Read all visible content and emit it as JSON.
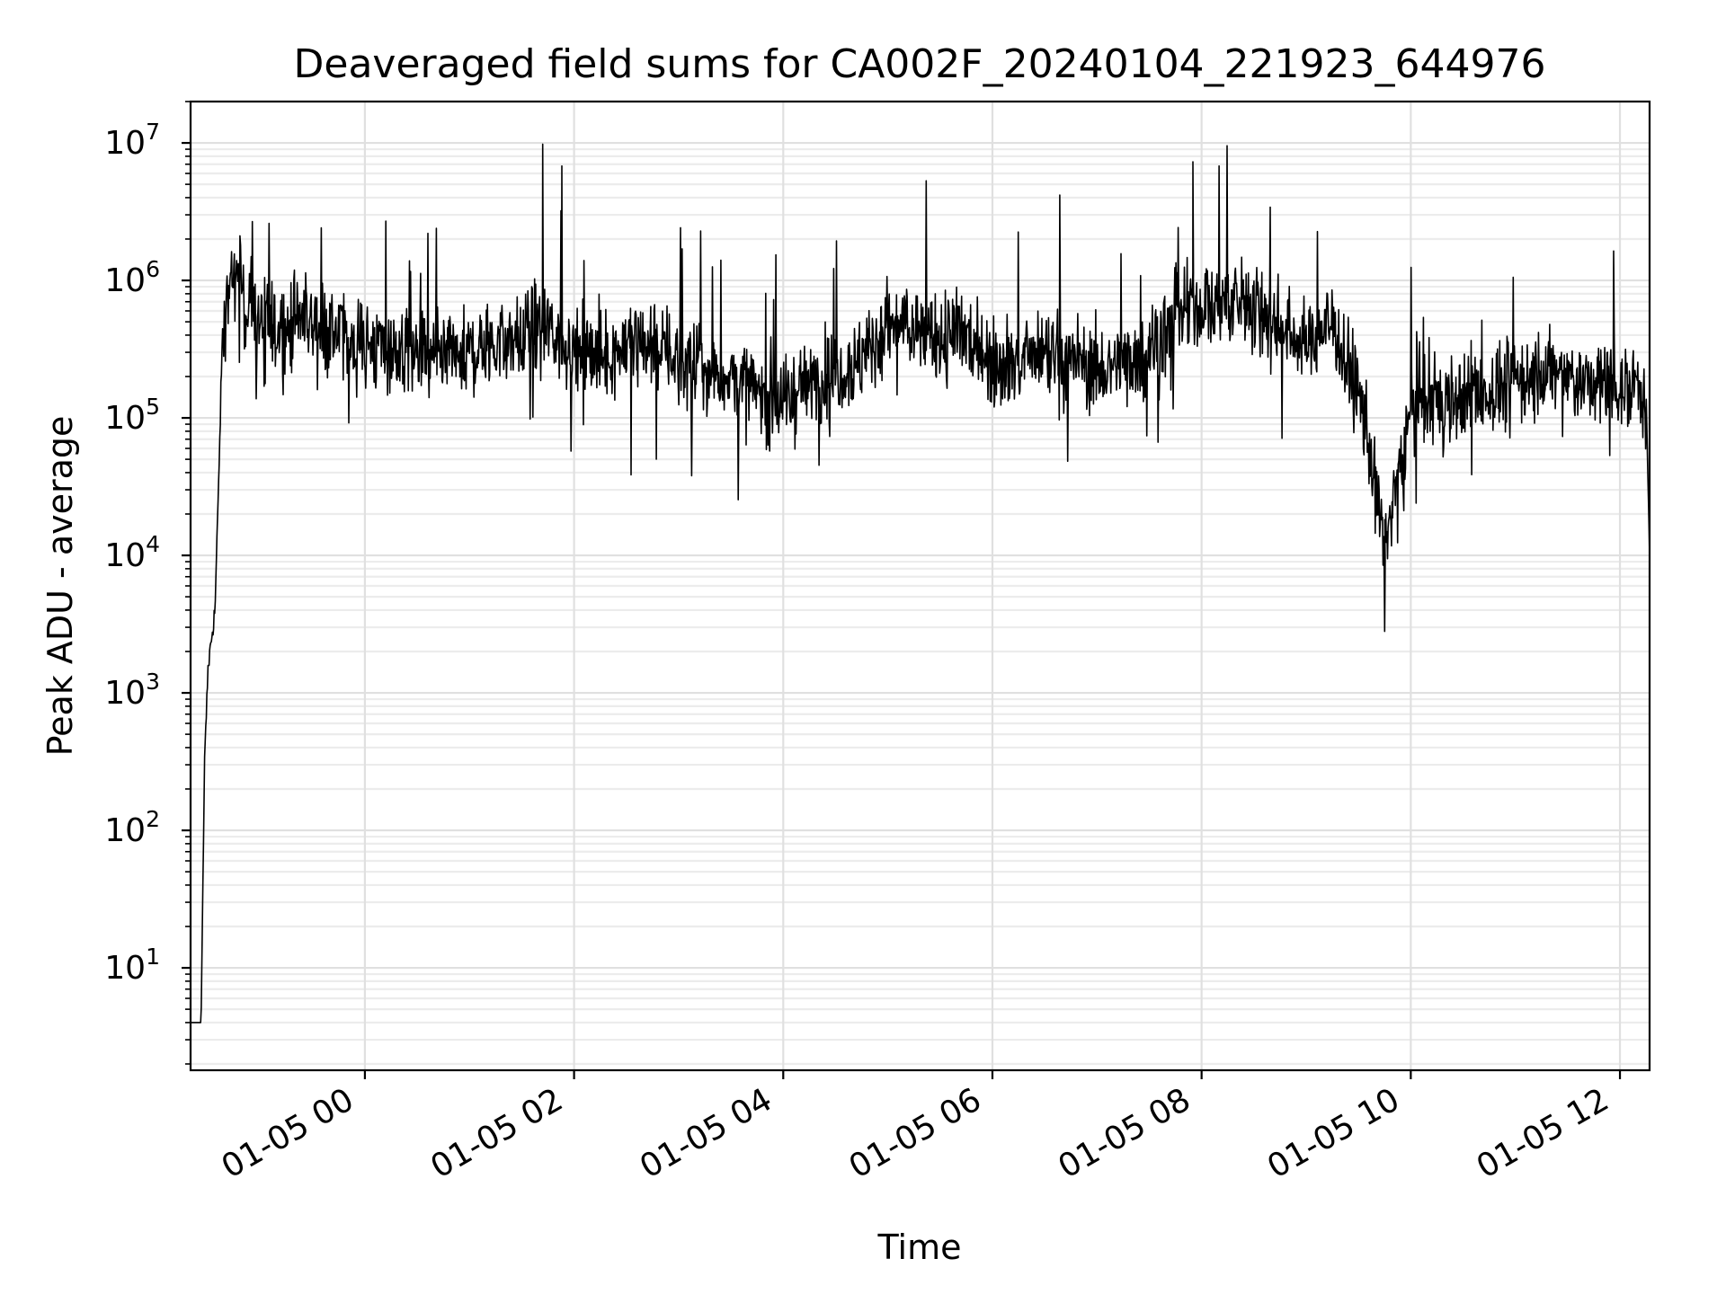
{
  "chart_data": {
    "type": "line",
    "title": "Deaveraged field sums for CA002F_20240104_221923_644976",
    "xlabel": "Time",
    "ylabel": "Peak ADU - average",
    "yscale": "log",
    "ylim": [
      1.8,
      20000000
    ],
    "xlim": [
      "2024-01-04 22:20",
      "2024-01-05 12:17"
    ],
    "x_ticks": [
      {
        "value": "2024-01-05 00:00",
        "label": "01-05 00"
      },
      {
        "value": "2024-01-05 02:00",
        "label": "01-05 02"
      },
      {
        "value": "2024-01-05 04:00",
        "label": "01-05 04"
      },
      {
        "value": "2024-01-05 06:00",
        "label": "01-05 06"
      },
      {
        "value": "2024-01-05 08:00",
        "label": "01-05 08"
      },
      {
        "value": "2024-01-05 10:00",
        "label": "01-05 10"
      },
      {
        "value": "2024-01-05 12:00",
        "label": "01-05 12"
      }
    ],
    "y_ticks": [
      {
        "value": 10,
        "base": "10",
        "exp": "1"
      },
      {
        "value": 100,
        "base": "10",
        "exp": "2"
      },
      {
        "value": 1000,
        "base": "10",
        "exp": "3"
      },
      {
        "value": 10000,
        "base": "10",
        "exp": "4"
      },
      {
        "value": 100000,
        "base": "10",
        "exp": "5"
      },
      {
        "value": 1000000,
        "base": "10",
        "exp": "6"
      },
      {
        "value": 10000000,
        "base": "10",
        "exp": "7"
      }
    ],
    "grid": "on (major and minor)",
    "line_color": "#000000",
    "series": [
      {
        "x": [
          "2024-01-04 22:20",
          "2024-01-04 22:22",
          "2024-01-04 22:24",
          "2024-01-04 22:26",
          "2024-01-04 22:28",
          "2024-01-04 22:30",
          "2024-01-04 22:32",
          "2024-01-04 22:34",
          "2024-01-04 22:36",
          "2024-01-04 22:38",
          "2024-01-04 22:40",
          "2024-01-04 22:45",
          "2024-01-04 22:50",
          "2024-01-04 22:55",
          "2024-01-04 23:00",
          "2024-01-04 23:10",
          "2024-01-04 23:20",
          "2024-01-04 23:30",
          "2024-01-04 23:45",
          "2024-01-05 00:00",
          "2024-01-05 00:15",
          "2024-01-05 00:30",
          "2024-01-05 00:45",
          "2024-01-05 01:00",
          "2024-01-05 01:15",
          "2024-01-05 01:30",
          "2024-01-05 01:45",
          "2024-01-05 02:00",
          "2024-01-05 02:15",
          "2024-01-05 02:30",
          "2024-01-05 02:45",
          "2024-01-05 03:00",
          "2024-01-05 03:15",
          "2024-01-05 03:30",
          "2024-01-05 03:45",
          "2024-01-05 04:00",
          "2024-01-05 04:15",
          "2024-01-05 04:30",
          "2024-01-05 04:45",
          "2024-01-05 05:00",
          "2024-01-05 05:15",
          "2024-01-05 05:30",
          "2024-01-05 05:45",
          "2024-01-05 06:00",
          "2024-01-05 06:15",
          "2024-01-05 06:30",
          "2024-01-05 06:45",
          "2024-01-05 07:00",
          "2024-01-05 07:15",
          "2024-01-05 07:30",
          "2024-01-05 07:45",
          "2024-01-05 08:00",
          "2024-01-05 08:15",
          "2024-01-05 08:30",
          "2024-01-05 08:45",
          "2024-01-05 09:00",
          "2024-01-05 09:15",
          "2024-01-05 09:30",
          "2024-01-05 09:40",
          "2024-01-05 09:45",
          "2024-01-05 09:50",
          "2024-01-05 10:00",
          "2024-01-05 10:15",
          "2024-01-05 10:30",
          "2024-01-05 10:45",
          "2024-01-05 11:00",
          "2024-01-05 11:15",
          "2024-01-05 11:30",
          "2024-01-05 11:45",
          "2024-01-05 12:00",
          "2024-01-05 12:05",
          "2024-01-05 12:10",
          "2024-01-05 12:15",
          "2024-01-05 12:17"
        ],
        "values": [
          4,
          4,
          4,
          4,
          300,
          1500,
          2500,
          4000,
          30000,
          300000,
          700000,
          1100000,
          800000,
          600000,
          500000,
          450000,
          550000,
          500000,
          400000,
          350000,
          300000,
          280000,
          250000,
          300000,
          350000,
          380000,
          450000,
          300000,
          280000,
          330000,
          350000,
          260000,
          220000,
          200000,
          150000,
          130000,
          180000,
          220000,
          260000,
          480000,
          420000,
          380000,
          400000,
          270000,
          250000,
          270000,
          280000,
          220000,
          250000,
          310000,
          550000,
          650000,
          700000,
          650000,
          450000,
          350000,
          500000,
          150000,
          30000,
          12000,
          25000,
          120000,
          130000,
          140000,
          150000,
          190000,
          210000,
          200000,
          170000,
          180000,
          160000,
          210000,
          150000,
          10000
        ],
        "spikes": [
          {
            "x": "2024-01-05 01:42",
            "value": 9800000
          },
          {
            "x": "2024-01-05 01:53",
            "value": 6800000
          },
          {
            "x": "2024-01-05 07:55",
            "value": 7300000
          },
          {
            "x": "2024-01-05 05:22",
            "value": 5300000
          },
          {
            "x": "2024-01-05 08:10",
            "value": 6800000
          },
          {
            "x": "2024-01-04 23:05",
            "value": 2600000
          },
          {
            "x": "2024-01-05 00:12",
            "value": 2700000
          },
          {
            "x": "2024-01-05 09:45",
            "value": 2800
          }
        ]
      }
    ]
  }
}
